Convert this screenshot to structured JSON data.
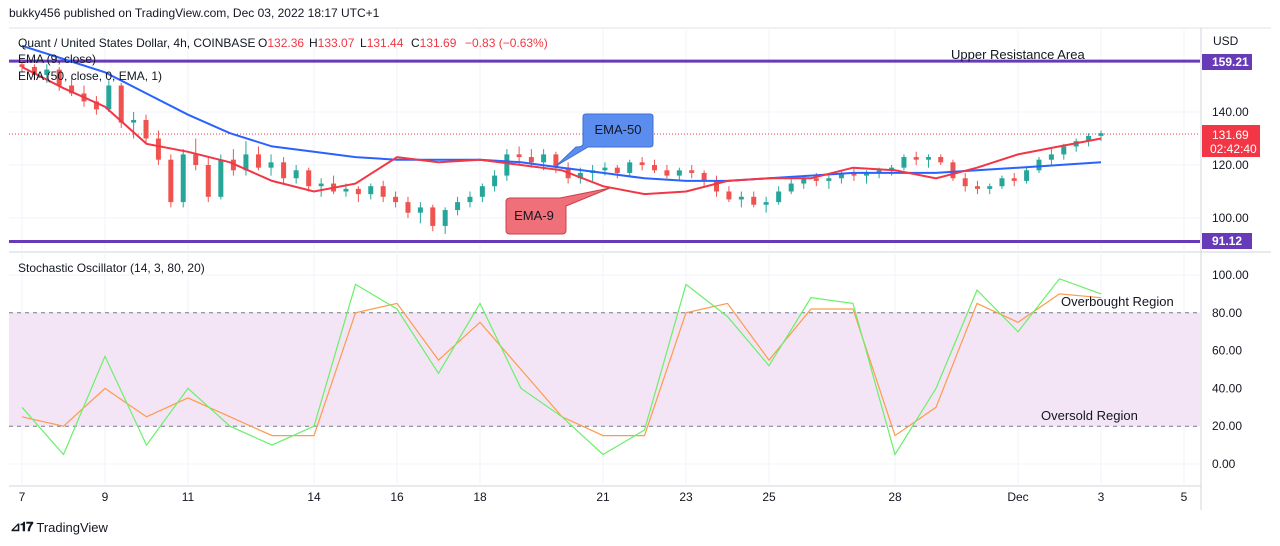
{
  "header": {
    "published_by": "bukky456 published on TradingView.com, Dec 03, 2022 18:17 UTC+1"
  },
  "symbol": {
    "name": "Quant / United States Dollar, 4h, COINBASE",
    "open_label": "O",
    "open": "132.36",
    "high_label": "H",
    "high": "133.07",
    "low_label": "L",
    "low": "131.44",
    "close_label": "C",
    "close": "131.69",
    "change": "−0.83 (−0.63%)"
  },
  "indicators": {
    "ema9_legend": "EMA (9, close)",
    "ema50_legend": "EMA (50, close, 0, EMA, 1)",
    "stoch_legend": "Stochastic Oscillator (14, 3, 80, 20)"
  },
  "annotations": {
    "upper_resistance": "Upper Resistance Area",
    "ema50_callout": "EMA-50",
    "ema9_callout": "EMA-9",
    "overbought": "Overbought Region",
    "oversold": "Oversold Region"
  },
  "price_axis": {
    "currency": "USD",
    "ticks": [
      "140.00",
      "120.00",
      "100.00"
    ],
    "resistance_label": "159.21",
    "support_label": "91.12",
    "last_price": "131.69",
    "countdown": "02:42:40"
  },
  "stoch_axis": {
    "ticks": [
      "100.00",
      "80.00",
      "60.00",
      "40.00",
      "20.00",
      "0.00"
    ]
  },
  "time_axis": [
    "7",
    "9",
    "11",
    "14",
    "16",
    "18",
    "21",
    "23",
    "25",
    "28",
    "Dec",
    "3",
    "5"
  ],
  "colors": {
    "resistance_line": "#673ab7",
    "ema50": "#2962ff",
    "ema9": "#f23645",
    "up_candle": "#26a69a",
    "down_candle": "#ef5350",
    "stoch_k": "#69f069",
    "stoch_d": "#ff9a4d",
    "stoch_band": "#f3e5f5",
    "callout_ema50": "#5b8def",
    "callout_ema9": "#f07079"
  },
  "footer": {
    "brand": "TradingView"
  },
  "chart_data": [
    {
      "type": "candlestick",
      "title": "Quant / United States Dollar, 4h, COINBASE",
      "x_ticks": [
        "7",
        "9",
        "11",
        "14",
        "16",
        "18",
        "21",
        "23",
        "25",
        "28",
        "Dec",
        "3",
        "5"
      ],
      "ylim": [
        86,
        165
      ],
      "y_ticks": [
        100,
        120,
        140
      ],
      "horizontal_levels": [
        {
          "label": "Upper Resistance Area",
          "value": 159.21
        },
        {
          "label": "",
          "value": 91.12
        }
      ],
      "last_price": 131.69,
      "series": [
        {
          "name": "EMA (9, close)",
          "points": [
            [
              7,
              157
            ],
            [
              8,
              149
            ],
            [
              9,
              142
            ],
            [
              10,
              128
            ],
            [
              11,
              125
            ],
            [
              12,
              121
            ],
            [
              13,
              114
            ],
            [
              14,
              110
            ],
            [
              15,
              113
            ],
            [
              15.5,
              118
            ],
            [
              16,
              123
            ],
            [
              17,
              121
            ],
            [
              18,
              122
            ],
            [
              19,
              120
            ],
            [
              20,
              118
            ],
            [
              21,
              112
            ],
            [
              22,
              109
            ],
            [
              23,
              110
            ],
            [
              24,
              114
            ],
            [
              25,
              115
            ],
            [
              26,
              115
            ],
            [
              27,
              119
            ],
            [
              28,
              118
            ],
            [
              29,
              115
            ],
            [
              30,
              119
            ],
            [
              31,
              124
            ],
            [
              32,
              127
            ],
            [
              33,
              130
            ]
          ]
        },
        {
          "name": "EMA (50, close, 0, EMA, 1)",
          "points": [
            [
              7,
              165
            ],
            [
              8,
              160
            ],
            [
              9,
              155
            ],
            [
              10,
              147
            ],
            [
              11,
              139
            ],
            [
              12,
              132
            ],
            [
              13,
              127
            ],
            [
              14,
              125
            ],
            [
              15,
              123
            ],
            [
              16,
              122
            ],
            [
              17,
              122
            ],
            [
              18,
              122
            ],
            [
              19,
              121
            ],
            [
              20,
              119
            ],
            [
              21,
              117
            ],
            [
              22,
              115
            ],
            [
              23,
              114
            ],
            [
              24,
              114
            ],
            [
              25,
              115
            ],
            [
              26,
              116
            ],
            [
              27,
              117
            ],
            [
              28,
              117
            ],
            [
              29,
              117
            ],
            [
              30,
              118
            ],
            [
              31,
              119
            ],
            [
              32,
              120
            ],
            [
              33,
              121
            ]
          ]
        }
      ],
      "candles": [
        [
          7.0,
          158,
          160,
          155,
          157
        ],
        [
          7.2,
          157,
          158,
          152,
          154
        ],
        [
          7.4,
          154,
          158,
          151,
          156
        ],
        [
          7.6,
          156,
          157,
          148,
          150
        ],
        [
          7.8,
          150,
          153,
          146,
          147
        ],
        [
          8.0,
          147,
          150,
          142,
          144
        ],
        [
          8.2,
          144,
          146,
          139,
          141
        ],
        [
          8.4,
          141,
          152,
          140,
          150
        ],
        [
          8.6,
          150,
          151,
          134,
          136
        ],
        [
          8.8,
          136,
          140,
          130,
          137
        ],
        [
          9.0,
          137,
          139,
          128,
          130
        ],
        [
          9.2,
          130,
          133,
          120,
          122
        ],
        [
          9.4,
          122,
          124,
          104,
          106
        ],
        [
          9.6,
          106,
          126,
          104,
          124
        ],
        [
          9.8,
          124,
          130,
          118,
          120
        ],
        [
          10.0,
          120,
          123,
          106,
          108
        ],
        [
          10.2,
          108,
          124,
          107,
          122
        ],
        [
          10.4,
          122,
          126,
          116,
          118
        ],
        [
          10.6,
          118,
          129,
          116,
          124
        ],
        [
          10.8,
          124,
          127,
          118,
          119
        ],
        [
          11.0,
          119,
          124,
          116,
          121
        ],
        [
          11.2,
          121,
          123,
          113,
          115
        ],
        [
          11.4,
          115,
          120,
          113,
          118
        ],
        [
          11.6,
          118,
          119,
          110,
          112
        ],
        [
          11.8,
          112,
          115,
          108,
          113
        ],
        [
          12.0,
          113,
          116,
          109,
          110
        ],
        [
          12.2,
          110,
          113,
          108,
          111
        ],
        [
          12.4,
          111,
          112,
          106,
          109
        ],
        [
          12.6,
          109,
          113,
          107,
          112
        ],
        [
          12.8,
          112,
          114,
          106,
          108
        ],
        [
          13.0,
          108,
          110,
          104,
          106
        ],
        [
          13.2,
          106,
          108,
          100,
          102
        ],
        [
          13.4,
          102,
          106,
          98,
          104
        ],
        [
          13.6,
          104,
          105,
          95,
          97
        ],
        [
          13.8,
          97,
          104,
          94,
          103
        ],
        [
          14.0,
          103,
          108,
          101,
          106
        ],
        [
          14.2,
          106,
          110,
          104,
          108
        ],
        [
          14.4,
          108,
          113,
          106,
          112
        ],
        [
          14.6,
          112,
          118,
          110,
          116
        ],
        [
          14.8,
          116,
          126,
          114,
          124
        ],
        [
          15.0,
          124,
          127,
          120,
          123
        ],
        [
          15.2,
          123,
          126,
          119,
          121
        ],
        [
          15.4,
          121,
          126,
          118,
          124
        ],
        [
          15.6,
          124,
          125,
          117,
          119
        ],
        [
          15.8,
          119,
          121,
          113,
          115
        ],
        [
          16.0,
          115,
          119,
          113,
          117
        ],
        [
          16.2,
          117,
          120,
          114,
          118
        ],
        [
          16.4,
          118,
          121,
          116,
          119
        ],
        [
          16.6,
          119,
          120,
          115,
          117
        ],
        [
          16.8,
          117,
          122,
          116,
          121
        ],
        [
          17.0,
          121,
          123,
          118,
          120
        ],
        [
          17.2,
          120,
          122,
          117,
          118
        ],
        [
          17.4,
          118,
          120,
          115,
          116
        ],
        [
          17.6,
          116,
          119,
          114,
          118
        ],
        [
          17.8,
          118,
          120,
          115,
          117
        ],
        [
          18.0,
          117,
          118,
          112,
          114
        ],
        [
          18.2,
          114,
          116,
          108,
          110
        ],
        [
          18.4,
          110,
          112,
          106,
          107
        ],
        [
          18.6,
          107,
          110,
          104,
          108
        ],
        [
          18.8,
          108,
          110,
          104,
          105
        ],
        [
          19.0,
          105,
          108,
          102,
          106
        ],
        [
          19.2,
          106,
          112,
          105,
          110
        ],
        [
          19.4,
          110,
          115,
          109,
          113
        ],
        [
          19.6,
          113,
          116,
          111,
          115
        ],
        [
          19.8,
          115,
          117,
          112,
          114
        ],
        [
          20.0,
          114,
          116,
          111,
          115
        ],
        [
          20.2,
          115,
          118,
          113,
          117
        ],
        [
          20.4,
          117,
          119,
          114,
          116
        ],
        [
          20.6,
          116,
          118,
          113,
          117
        ],
        [
          20.8,
          117,
          119,
          115,
          118
        ],
        [
          21.0,
          118,
          120,
          116,
          119
        ],
        [
          21.2,
          119,
          124,
          118,
          123
        ],
        [
          21.4,
          123,
          125,
          120,
          122
        ],
        [
          21.6,
          122,
          124,
          119,
          123
        ],
        [
          21.8,
          123,
          124,
          120,
          121
        ],
        [
          22.0,
          121,
          122,
          114,
          115
        ],
        [
          22.2,
          115,
          117,
          110,
          112
        ],
        [
          22.4,
          112,
          114,
          109,
          111
        ],
        [
          22.6,
          111,
          113,
          109,
          112
        ],
        [
          22.8,
          112,
          116,
          111,
          115
        ],
        [
          23.0,
          115,
          117,
          112,
          114
        ],
        [
          23.2,
          114,
          119,
          113,
          118
        ],
        [
          23.4,
          118,
          123,
          117,
          122
        ],
        [
          23.6,
          122,
          126,
          120,
          124
        ],
        [
          23.8,
          124,
          128,
          122,
          127
        ],
        [
          24.0,
          127,
          130,
          125,
          129
        ],
        [
          24.2,
          129,
          132,
          127,
          131
        ],
        [
          24.4,
          131,
          133,
          129,
          132
        ]
      ]
    },
    {
      "type": "line",
      "title": "Stochastic Oscillator (14, 3, 80, 20)",
      "x_ticks": [
        "7",
        "9",
        "11",
        "14",
        "16",
        "18",
        "21",
        "23",
        "25",
        "28",
        "Dec",
        "3",
        "5"
      ],
      "ylim": [
        -10,
        105
      ],
      "y_ticks": [
        0,
        20,
        40,
        60,
        80,
        100
      ],
      "bands": {
        "upper": 80,
        "lower": 20
      },
      "series": [
        {
          "name": "%K",
          "points": [
            [
              7,
              30
            ],
            [
              8,
              5
            ],
            [
              9,
              57
            ],
            [
              10,
              10
            ],
            [
              11,
              40
            ],
            [
              12,
              20
            ],
            [
              13,
              10
            ],
            [
              14,
              20
            ],
            [
              15,
              95
            ],
            [
              16,
              82
            ],
            [
              17,
              48
            ],
            [
              18,
              85
            ],
            [
              19,
              40
            ],
            [
              20,
              25
            ],
            [
              21,
              5
            ],
            [
              22,
              18
            ],
            [
              23,
              95
            ],
            [
              24,
              78
            ],
            [
              25,
              52
            ],
            [
              26,
              88
            ],
            [
              27,
              85
            ],
            [
              28,
              5
            ],
            [
              29,
              40
            ],
            [
              30,
              92
            ],
            [
              31,
              70
            ],
            [
              32,
              98
            ],
            [
              33,
              90
            ]
          ]
        },
        {
          "name": "%D",
          "points": [
            [
              7,
              25
            ],
            [
              8,
              20
            ],
            [
              9,
              40
            ],
            [
              10,
              25
            ],
            [
              11,
              35
            ],
            [
              12,
              25
            ],
            [
              13,
              15
            ],
            [
              14,
              15
            ],
            [
              15,
              80
            ],
            [
              16,
              85
            ],
            [
              17,
              55
            ],
            [
              18,
              75
            ],
            [
              19,
              50
            ],
            [
              20,
              25
            ],
            [
              21,
              15
            ],
            [
              22,
              15
            ],
            [
              23,
              80
            ],
            [
              24,
              85
            ],
            [
              25,
              55
            ],
            [
              26,
              82
            ],
            [
              27,
              82
            ],
            [
              28,
              15
            ],
            [
              29,
              30
            ],
            [
              30,
              85
            ],
            [
              31,
              75
            ],
            [
              32,
              90
            ],
            [
              33,
              88
            ]
          ]
        }
      ]
    }
  ]
}
